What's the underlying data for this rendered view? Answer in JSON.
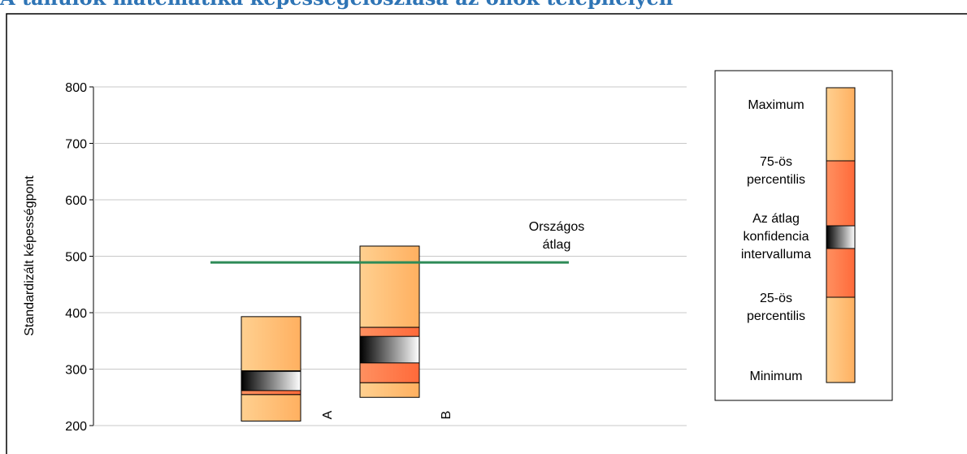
{
  "chart_data": {
    "type": "box",
    "title": "A tanulók matematika képességeloszlása az önök telephelyén",
    "ylabel": "Standardizált képességpont",
    "categories": [
      "A",
      "B"
    ],
    "min": [
      208,
      250
    ],
    "q1": [
      255,
      276
    ],
    "ci_low": [
      262,
      311
    ],
    "ci_high": [
      296,
      358
    ],
    "q3": [
      297,
      374
    ],
    "max": [
      393,
      518
    ],
    "reference": {
      "value": 489,
      "label": [
        "Országos",
        "átlag"
      ],
      "color": "#2e8b57"
    },
    "ylim": [
      200,
      800
    ],
    "yticks": [
      200,
      300,
      400,
      500,
      600,
      700,
      800
    ],
    "grid": true,
    "colors": {
      "outer": [
        "#ffd090",
        "#ffb060"
      ],
      "inner": [
        "#ff9060",
        "#ff6a3a"
      ],
      "ci": [
        "#000000",
        "#ffffff"
      ]
    },
    "legend": {
      "position": "right",
      "items": [
        [
          "Maximum"
        ],
        [
          "75-ös",
          "percentilis"
        ],
        [
          "Az átlag",
          "konfidencia",
          "intervalluma"
        ],
        [
          "25-ös",
          "percentilis"
        ],
        [
          "Minimum"
        ]
      ]
    }
  }
}
